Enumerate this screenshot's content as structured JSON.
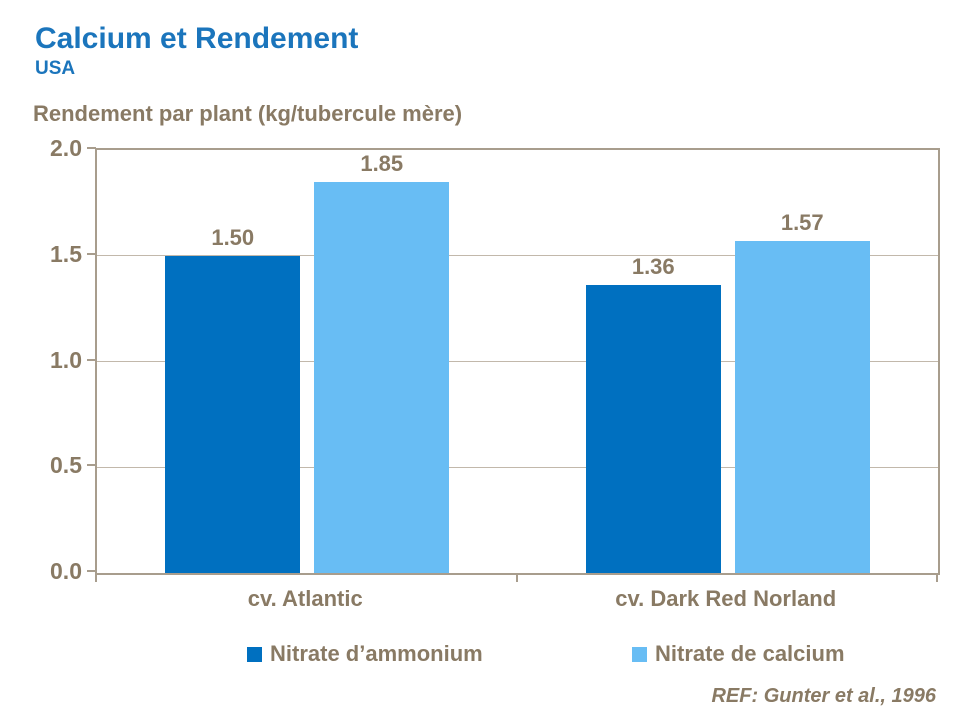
{
  "header": {
    "title": "Calcium et Rendement",
    "subtitle": "USA",
    "axis_title": "Rendement par plant (kg/tubercule mère)"
  },
  "footer": {
    "ref": "REF: Gunter et al., 1996"
  },
  "colors": {
    "title_blue": "#1B75BC",
    "text_brown": "#897A64",
    "axis_line": "#A89D8D",
    "gridline": "#C2B8AB",
    "series1_blue": "#0070C0",
    "series2_blue": "#68BDF4"
  },
  "chart_data": {
    "type": "bar",
    "title": "Rendement par plant (kg/tubercule mère)",
    "categories": [
      "cv. Atlantic",
      "cv. Dark Red Norland"
    ],
    "series": [
      {
        "name": "Nitrate d’ammonium",
        "color": "#0070C0",
        "values": [
          1.5,
          1.36
        ],
        "labels": [
          "1.50",
          "1.36"
        ]
      },
      {
        "name": "Nitrate de calcium",
        "color": "#68BDF4",
        "values": [
          1.85,
          1.57
        ],
        "labels": [
          "1.85",
          "1.57"
        ]
      }
    ],
    "xlabel": "",
    "ylabel": "Rendement par plant (kg/tubercule mère)",
    "ylim": [
      0.0,
      2.0
    ],
    "yticks": [
      "0.0",
      "0.5",
      "1.0",
      "1.5",
      "2.0"
    ],
    "grid": true,
    "legend_position": "bottom"
  }
}
